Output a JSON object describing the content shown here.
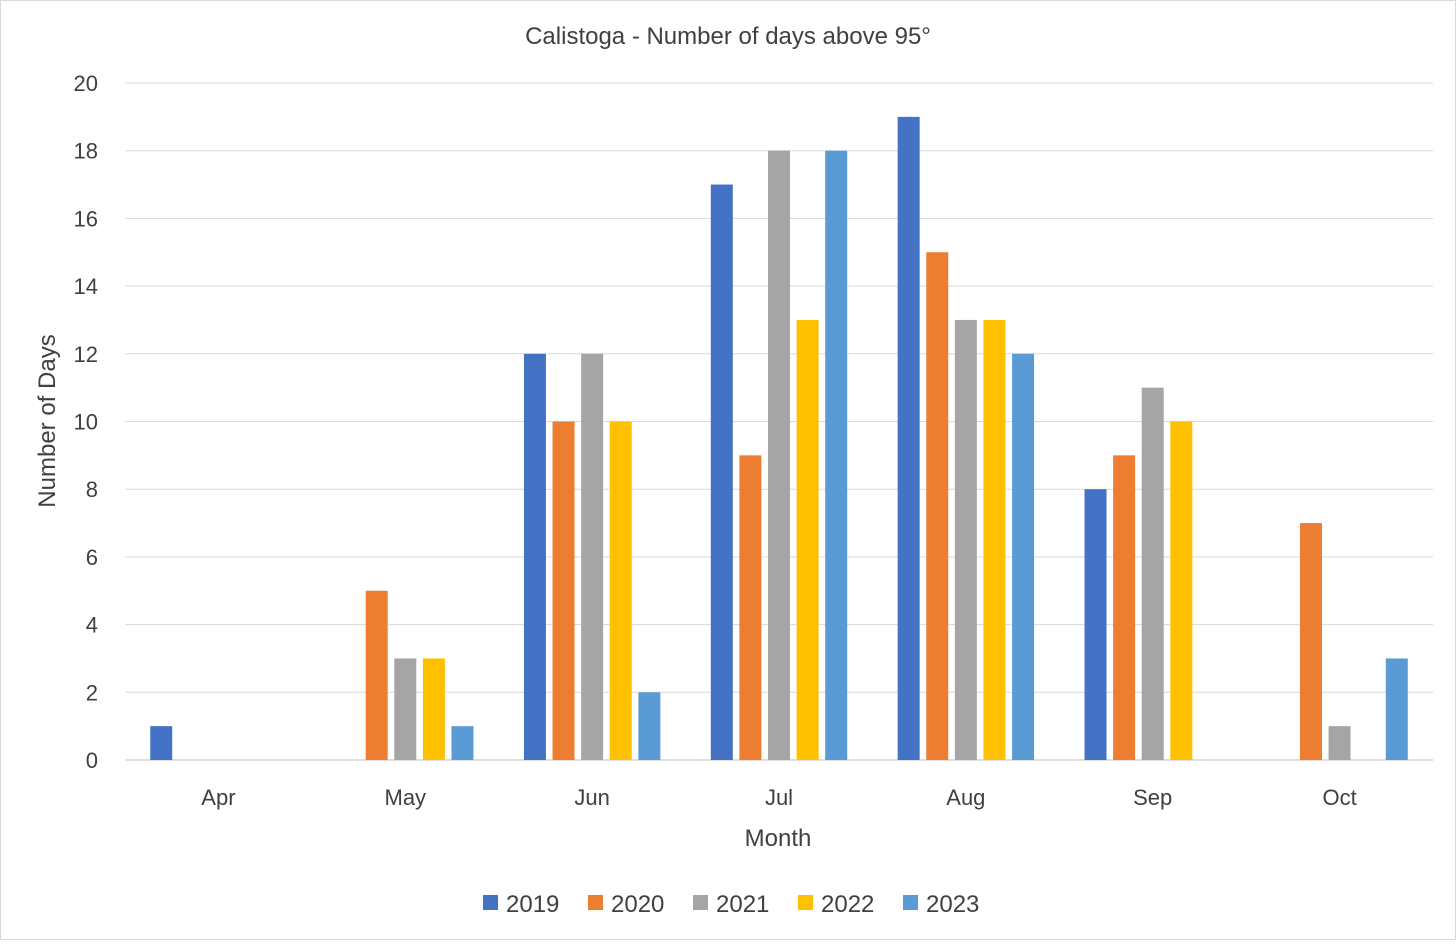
{
  "chart_data": {
    "type": "bar",
    "title": "Calistoga - Number of days above 95°",
    "xlabel": "Month",
    "ylabel": "Number of Days",
    "ylim": [
      0,
      20
    ],
    "ytick_step": 2,
    "grid": true,
    "legend_position": "bottom",
    "categories": [
      "Apr",
      "May",
      "Jun",
      "Jul",
      "Aug",
      "Sep",
      "Oct"
    ],
    "series": [
      {
        "name": "2019",
        "color": "#4472c4",
        "values": [
          1,
          0,
          12,
          17,
          19,
          8,
          0
        ]
      },
      {
        "name": "2020",
        "color": "#ed7d31",
        "values": [
          0,
          5,
          10,
          9,
          15,
          9,
          7
        ]
      },
      {
        "name": "2021",
        "color": "#a5a5a5",
        "values": [
          0,
          3,
          12,
          18,
          13,
          11,
          1
        ]
      },
      {
        "name": "2022",
        "color": "#ffc000",
        "values": [
          0,
          3,
          10,
          13,
          13,
          10,
          0
        ]
      },
      {
        "name": "2023",
        "color": "#5b9bd5",
        "values": [
          0,
          1,
          2,
          18,
          12,
          0,
          3
        ]
      }
    ]
  }
}
